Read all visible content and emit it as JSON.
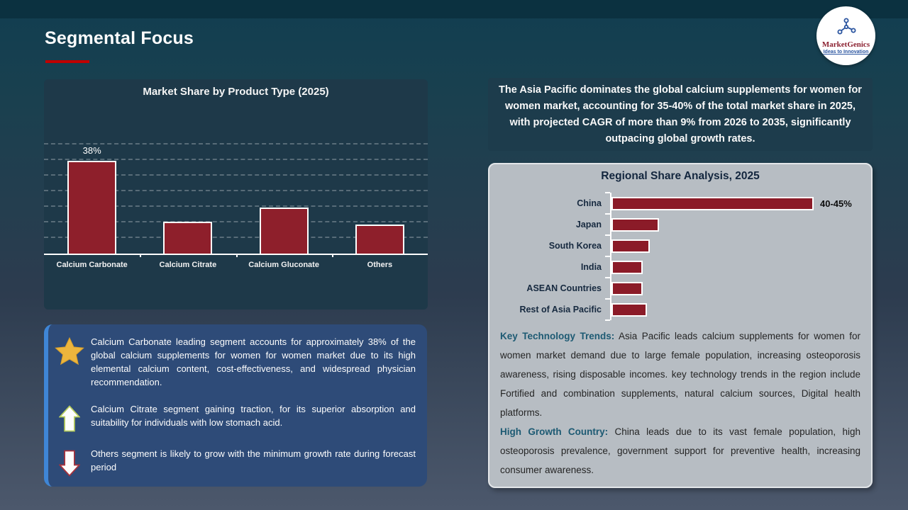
{
  "slide": {
    "top_title": "Segmental Focus",
    "logo": {
      "name": "MarketGenics",
      "tagline": "Ideas to Innovation"
    }
  },
  "colors": {
    "accent_red": "#c00000",
    "bar_red": "#8e1f2b",
    "left_panel_bg": "#1e3949",
    "info_box_bg": "#2e4b78",
    "info_box_stripe": "#3f86d6",
    "callout_bg": "#1d3c4c",
    "regional_panel_bg": "#b7bdc3",
    "heading_teal": "#1d5a73",
    "navy_text": "#16293f",
    "star_gold": "#ecb53d"
  },
  "chart_data": [
    {
      "type": "bar",
      "title": "Market Share by Product Type (2025)",
      "categories": [
        "Calcium Carbonate",
        "Calcium Citrate",
        "Calcium Gluconate",
        "Others"
      ],
      "values": [
        38,
        13,
        19,
        12
      ],
      "value_labels": [
        "38%",
        "",
        "",
        ""
      ],
      "unit": "%",
      "ylim": [
        0,
        47
      ],
      "grid": "horizontal-dashed",
      "legend": "none"
    },
    {
      "type": "bar-horizontal",
      "title": "Regional Share Analysis, 2025",
      "categories": [
        "China",
        "Japan",
        "South Korea",
        "India",
        "ASEAN Countries",
        "Rest of Asia Pacific"
      ],
      "values": [
        42.5,
        10,
        8,
        6.5,
        6.5,
        7.5
      ],
      "value_labels": [
        "40-45%",
        "",
        "",
        "",
        "",
        ""
      ],
      "unit": "%",
      "xlim": [
        0,
        53
      ],
      "grid": "off",
      "legend": "none"
    }
  ],
  "insights": {
    "items": [
      {
        "icon": "star-icon",
        "text": "Calcium Carbonate leading segment accounts for approximately 38% of the global calcium supplements for women for women market due to its high elemental calcium content, cost-effectiveness, and widespread physician recommendation."
      },
      {
        "icon": "arrow-up-icon",
        "text": "Calcium Citrate segment gaining traction, for its superior absorption and suitability for individuals with low stomach acid."
      },
      {
        "icon": "arrow-down-icon",
        "text": "Others segment is likely to grow with the minimum growth rate during forecast period"
      }
    ]
  },
  "apac_callout": "The Asia Pacific dominates the global calcium supplements for women for women market, accounting for 35-40% of the total market share in 2025, with projected CAGR of more than 9% from 2026 to 2035, significantly outpacing global growth rates.",
  "regional_notes": {
    "trends_label": "Key Technology Trends:",
    "trends_text": " Asia Pacific leads calcium supplements for women for women market demand due to large female population, increasing osteoporosis awareness, rising disposable incomes. key technology trends in the region include Fortified and combination supplements, natural calcium sources, Digital health platforms.",
    "growth_label": "High Growth Country:",
    "growth_text": " China leads due to its vast female population, high osteoporosis prevalence, government support for preventive health, increasing consumer awareness."
  }
}
